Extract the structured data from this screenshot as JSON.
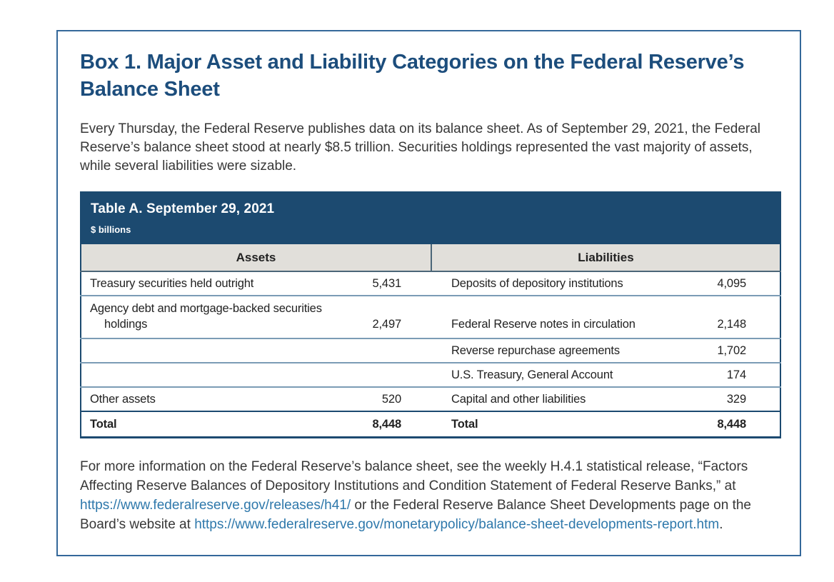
{
  "page": {
    "box_title": "Box 1. Major Asset and Liability Categories on the Federal Reserve’s Balance Sheet",
    "intro": "Every Thursday, the Federal Reserve publishes data on its balance sheet. As of September 29, 2021, the Federal Reserve’s balance sheet stood at nearly $8.5 trillion. Securities holdings represented the vast majority of assets, while several liabilities were sizable.",
    "table": {
      "title": "Table A. September 29, 2021",
      "unit": "$ billions",
      "columns": [
        "Assets",
        "Liabilities"
      ],
      "rows": [
        {
          "asset_label": "Treasury securities held outright",
          "asset_value": "5,431",
          "liability_label": "Deposits of depository institutions",
          "liability_value": "4,095"
        },
        {
          "asset_label_line1": "Agency debt and mortgage-backed securities",
          "asset_label_line2": "holdings",
          "asset_value": "2,497",
          "liability_label": "Federal Reserve notes in circulation",
          "liability_value": "2,148"
        },
        {
          "asset_label": "",
          "asset_value": "",
          "liability_label": "Reverse repurchase agreements",
          "liability_value": "1,702"
        },
        {
          "asset_label": "",
          "asset_value": "",
          "liability_label": "U.S. Treasury, General Account",
          "liability_value": "174"
        },
        {
          "asset_label": "Other assets",
          "asset_value": "520",
          "liability_label": "Capital and other liabilities",
          "liability_value": "329"
        },
        {
          "asset_label": "Total",
          "asset_value": "8,448",
          "liability_label": "Total",
          "liability_value": "8,448"
        }
      ]
    },
    "footer": {
      "text_before_link1": "For more information on the Federal Reserve’s balance sheet, see the weekly H.4.1 statistical release, “Factors Affecting Reserve Balances of Depository Institutions and Condition Statement of Federal Reserve Banks,” at ",
      "link1": "https://www.federalreserve.gov/releases/h41/",
      "text_between_links": " or the Federal Reserve Balance Sheet Developments page on the Board’s website at ",
      "link2": "https://www.federalreserve.gov/monetarypolicy/balance-sheet-developments-report.htm",
      "text_after_link2": "."
    },
    "colors": {
      "accent_navy": "#1c4a70",
      "title_blue": "#1c4d7c",
      "link_blue": "#2e78ab",
      "header_gray": "#e1dfda",
      "row_separator": "#7b9cb5",
      "box_border": "#34689a"
    }
  }
}
